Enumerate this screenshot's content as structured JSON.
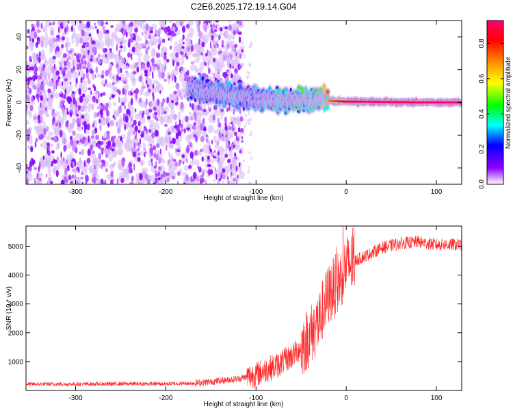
{
  "title": "C2E6.2025.172.19.14.G04",
  "chart_data": [
    {
      "type": "heatmap",
      "xlabel": "Height of straight line (km)",
      "ylabel": "Frequency (Hz)",
      "colorbar_label": "Normalized spectral amplitude",
      "xlim": [
        -355,
        128
      ],
      "ylim": [
        -50,
        50
      ],
      "x_ticks": [
        -300,
        -200,
        -100,
        0,
        100
      ],
      "y_ticks": [
        -40,
        -20,
        0,
        20,
        40
      ],
      "colorbar_range": [
        0,
        0.93
      ],
      "colorbar_ticks": [
        0,
        0.2,
        0.4,
        0.6,
        0.8
      ],
      "colormap": [
        "#ffffff",
        "#8c00ff",
        "#0000ff",
        "#00ffff",
        "#00ff00",
        "#ffff00",
        "#ff7f00",
        "#ff0000",
        "#ff0070"
      ],
      "ridge": {
        "x": [
          -170,
          -150,
          -130,
          -110,
          -90,
          -70,
          -50,
          -30,
          -20,
          0,
          20,
          50,
          80,
          100,
          128
        ],
        "center_freq": [
          9,
          6,
          5,
          3,
          2,
          1,
          2,
          2,
          1,
          0.5,
          0.5,
          0.2,
          0,
          0,
          0
        ],
        "peak_amplitude": [
          0.3,
          0.3,
          0.35,
          0.3,
          0.35,
          0.4,
          0.45,
          0.5,
          0.7,
          0.85,
          0.9,
          0.9,
          0.9,
          0.9,
          0.9
        ]
      },
      "noise_region": {
        "x_range": [
          -355,
          -115
        ],
        "amplitude_approx": 0.1
      }
    },
    {
      "type": "line",
      "xlabel": "Height of straight line (km)",
      "ylabel": "SNR (10 * v/v)",
      "xlim": [
        -355,
        128
      ],
      "ylim": [
        0,
        5700
      ],
      "x_ticks": [
        -300,
        -200,
        -100,
        0,
        100
      ],
      "y_ticks": [
        1000,
        2000,
        3000,
        4000,
        5000
      ],
      "grid": false,
      "color": "#ff0000",
      "x": [
        -355,
        -300,
        -250,
        -200,
        -170,
        -150,
        -120,
        -100,
        -90,
        -75,
        -60,
        -50,
        -40,
        -30,
        -25,
        -20,
        -15,
        -10,
        -5,
        0,
        10,
        20,
        30,
        40,
        60,
        80,
        100,
        128
      ],
      "y": [
        220,
        220,
        230,
        230,
        250,
        300,
        400,
        550,
        700,
        900,
        1200,
        1500,
        1900,
        2400,
        2900,
        3300,
        3500,
        3700,
        4000,
        4300,
        4500,
        4650,
        4800,
        4950,
        5100,
        5150,
        5050,
        5050
      ]
    }
  ]
}
